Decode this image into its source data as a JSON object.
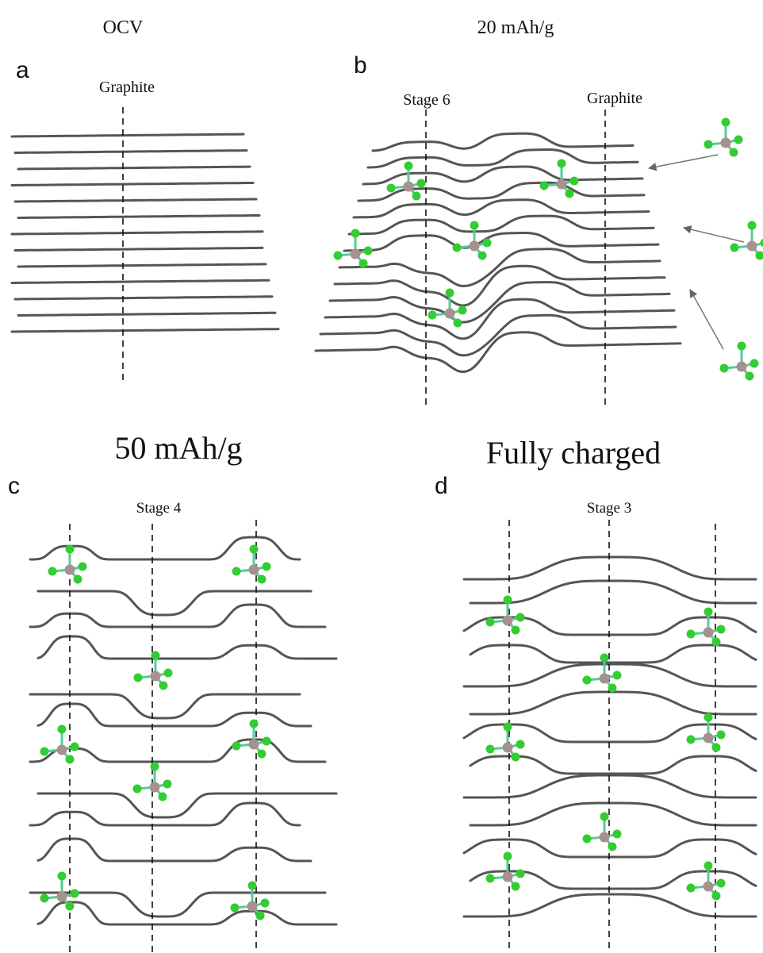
{
  "panels": [
    {
      "letter": "a",
      "title": "OCV",
      "labels": [
        "Graphite"
      ]
    },
    {
      "letter": "b",
      "title": "20 mAh/g",
      "labels": [
        "Stage 6",
        "Graphite"
      ]
    },
    {
      "letter": "c",
      "title": "50 mAh/g",
      "labels": [
        "Stage 4"
      ]
    },
    {
      "letter": "d",
      "title": "Fully charged",
      "labels": [
        "Stage 3"
      ]
    }
  ]
}
